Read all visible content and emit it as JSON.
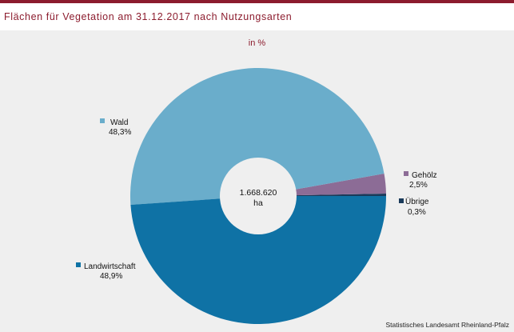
{
  "header": {
    "title": "Flächen für Vegetation am  31.12.2017 nach Nutzungsarten"
  },
  "source": "Statistisches Landesamt Rheinland-Pfalz",
  "chart_data": {
    "type": "pie",
    "subtitle": "in %",
    "center_label": [
      "1.668.620",
      "ha"
    ],
    "slices": [
      {
        "name": "Wald",
        "value": 48.3,
        "label": "48,3%",
        "color": "#6aadcb"
      },
      {
        "name": "Gehölz",
        "value": 2.5,
        "label": "2,5%",
        "color": "#8c6c96"
      },
      {
        "name": "Übrige",
        "value": 0.3,
        "label": "0,3%",
        "color": "#1a3a5a"
      },
      {
        "name": "Landwirtschaft",
        "value": 48.9,
        "label": "48,9%",
        "color": "#0f72a5"
      }
    ]
  }
}
